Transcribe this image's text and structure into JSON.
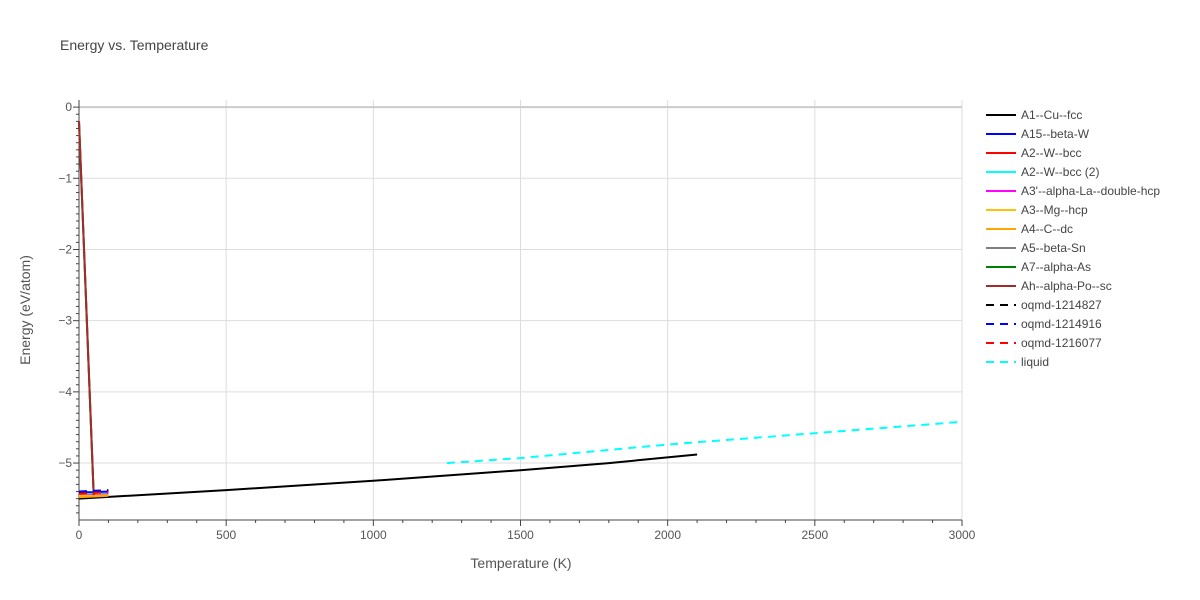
{
  "chart_data": {
    "type": "line",
    "title": "Energy vs. Temperature",
    "xlabel": "Temperature (K)",
    "ylabel": "Energy (eV/atom)",
    "xlim": [
      0,
      3000
    ],
    "ylim": [
      -5.8,
      0.1
    ],
    "x_ticks": [
      0,
      500,
      1000,
      1500,
      2000,
      2500,
      3000
    ],
    "y_ticks": [
      0,
      -1,
      -2,
      -3,
      -4,
      -5
    ],
    "grid": true,
    "legend_position": "right",
    "series": [
      {
        "name": "A1--Cu--fcc",
        "color": "#000000",
        "dash": "solid",
        "x": [
          0,
          500,
          1000,
          1500,
          1800,
          2100
        ],
        "y": [
          -5.5,
          -5.38,
          -5.25,
          -5.1,
          -5.0,
          -4.88
        ]
      },
      {
        "name": "A15--beta-W",
        "color": "#0000ff",
        "dash": "solid",
        "x": [
          0,
          50,
          100
        ],
        "y": [
          -5.41,
          -5.41,
          -5.4
        ]
      },
      {
        "name": "A2--W--bcc",
        "color": "#ff0000",
        "dash": "solid",
        "x": [
          0,
          50,
          100
        ],
        "y": [
          -5.44,
          -5.44,
          -5.43
        ]
      },
      {
        "name": "A2--W--bcc (2)",
        "color": "#00ffff",
        "dash": "solid",
        "x": [
          0,
          50,
          100
        ],
        "y": [
          -5.44,
          -5.44,
          -5.43
        ]
      },
      {
        "name": "A3'--alpha-La--double-hcp",
        "color": "#ff00ff",
        "dash": "solid",
        "x": [
          0,
          50,
          100
        ],
        "y": [
          -5.45,
          -5.45,
          -5.44
        ]
      },
      {
        "name": "A3--Mg--hcp",
        "color": "#ffc107",
        "dash": "solid",
        "x": [
          0,
          50,
          100
        ],
        "y": [
          -5.46,
          -5.46,
          -5.45
        ]
      },
      {
        "name": "A4--C--dc",
        "color": "#ffa500",
        "dash": "solid",
        "x": [
          0,
          50,
          100
        ],
        "y": [
          -5.48,
          -5.47,
          -5.46
        ]
      },
      {
        "name": "A5--beta-Sn",
        "color": "#808080",
        "dash": "solid",
        "x": [
          0,
          50
        ],
        "y": [
          -0.2,
          -5.45
        ]
      },
      {
        "name": "A7--alpha-As",
        "color": "#008000",
        "dash": "solid",
        "x": [
          0,
          50
        ],
        "y": [
          -0.2,
          -5.45
        ]
      },
      {
        "name": "Ah--alpha-Po--sc",
        "color": "#a52a2a",
        "dash": "solid",
        "x": [
          0,
          50
        ],
        "y": [
          -0.2,
          -5.45
        ]
      },
      {
        "name": "oqmd-1214827",
        "color": "#000000",
        "dash": "dash",
        "x": [
          0,
          50,
          100
        ],
        "y": [
          -5.41,
          -5.4,
          -5.39
        ]
      },
      {
        "name": "oqmd-1214916",
        "color": "#0000ff",
        "dash": "dash",
        "x": [
          0,
          50,
          100
        ],
        "y": [
          -5.4,
          -5.39,
          -5.38
        ]
      },
      {
        "name": "oqmd-1216077",
        "color": "#ff0000",
        "dash": "dash",
        "x": [
          0,
          50,
          100
        ],
        "y": [
          -5.43,
          -5.42,
          -5.41
        ]
      },
      {
        "name": "liquid",
        "color": "#00ffff",
        "dash": "dash",
        "x": [
          1250,
          1500,
          2000,
          2500,
          3000
        ],
        "y": [
          -5.0,
          -4.93,
          -4.74,
          -4.58,
          -4.42
        ]
      }
    ]
  }
}
